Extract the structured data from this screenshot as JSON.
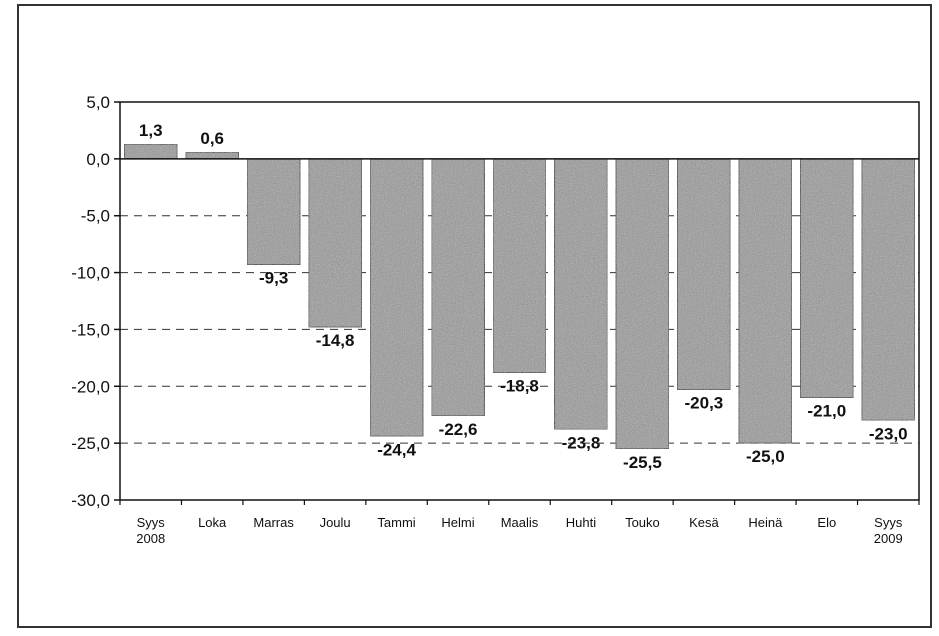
{
  "chart_data": {
    "type": "bar",
    "categories": [
      [
        "Syys",
        "2008"
      ],
      [
        "Loka"
      ],
      [
        "Marras"
      ],
      [
        "Joulu"
      ],
      [
        "Tammi"
      ],
      [
        "Helmi"
      ],
      [
        "Maalis"
      ],
      [
        "Huhti"
      ],
      [
        "Touko"
      ],
      [
        "Kesä"
      ],
      [
        "Heinä"
      ],
      [
        "Elo"
      ],
      [
        "Syys",
        "2009"
      ]
    ],
    "values": [
      1.3,
      0.6,
      -9.3,
      -14.8,
      -24.4,
      -22.6,
      -18.8,
      -23.8,
      -25.5,
      -20.3,
      -25.0,
      -21.0,
      -23.0
    ],
    "value_labels": [
      "1,3",
      "0,6",
      "-9,3",
      "-14,8",
      "-24,4",
      "-22,6",
      "-18,8",
      "-23,8",
      "-25,5",
      "-20,3",
      "-25,0",
      "-21,0",
      "-23,0"
    ],
    "ylim": [
      -30,
      5
    ],
    "yticks": [
      5,
      0,
      -5,
      -10,
      -15,
      -20,
      -25,
      -30
    ],
    "ytick_labels": [
      "5,0",
      "0,0",
      "-5,0",
      "-10,0",
      "-15,0",
      "-20,0",
      "-25,0",
      "-30,0"
    ],
    "grid": "horizontal dashed",
    "colors": {
      "bar_fill": "#8c8c8c",
      "bar_stroke": "#222222",
      "grid": "#333333",
      "axis": "#111111"
    }
  }
}
